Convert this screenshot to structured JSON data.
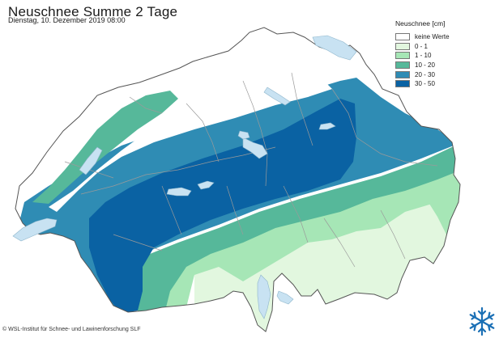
{
  "header": {
    "title": "Neuschnee Summe 2 Tage",
    "subtitle": "Dienstag, 10. Dezember 2019 08:00"
  },
  "legend": {
    "title": "Neuschnee [cm]",
    "items": [
      {
        "label": "keine Werte",
        "color": "#ffffff"
      },
      {
        "label": "0 - 1",
        "color": "#e2f7df"
      },
      {
        "label": "1 - 10",
        "color": "#a6e6b6"
      },
      {
        "label": "10 - 20",
        "color": "#56b89a"
      },
      {
        "label": "20 - 30",
        "color": "#2f8cb4"
      },
      {
        "label": "30 - 50",
        "color": "#0a62a3"
      }
    ]
  },
  "colors": {
    "lake": "#c8e2f2",
    "border": "#555555",
    "region_border": "#9a9a9a",
    "logo": "#1a6fb5"
  },
  "footer": {
    "copyright": "© WSL-Institut für Schnee- und Lawinenforschung SLF"
  },
  "icons": {
    "logo": "snowflake-icon"
  }
}
